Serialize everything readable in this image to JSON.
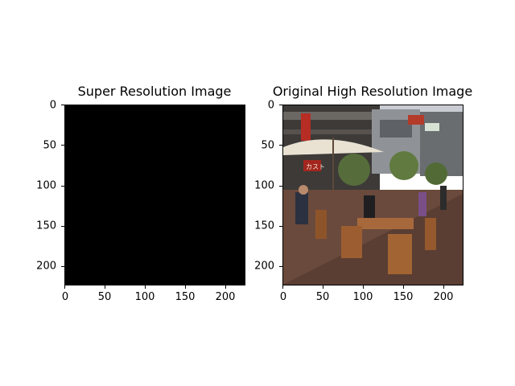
{
  "panels": [
    {
      "title": "Super Resolution Image"
    },
    {
      "title": "Original High Resolution Image"
    }
  ],
  "x_ticks": [
    "0",
    "50",
    "100",
    "150",
    "200"
  ],
  "y_ticks": [
    "0",
    "50",
    "100",
    "150",
    "200"
  ],
  "photo_signs": {
    "shop_sign": "カスト"
  },
  "colors": {
    "super_resolution_fill": "#000000"
  }
}
